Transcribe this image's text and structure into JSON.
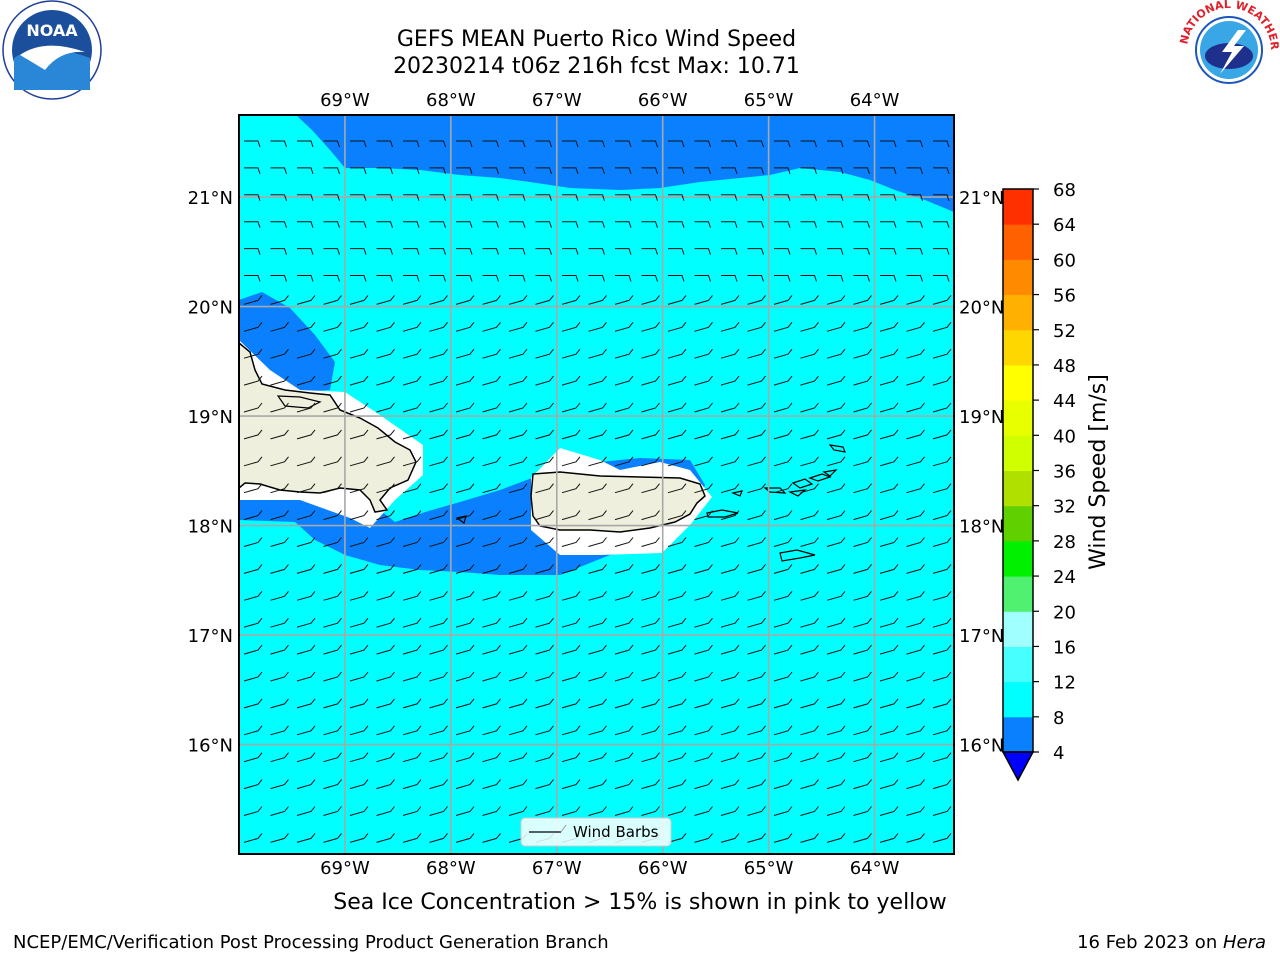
{
  "header": {
    "title_line_1": "GEFS MEAN Puerto Rico Wind Speed",
    "title_line_2": "20230214 t06z 216h fcst   Max: 10.71"
  },
  "map": {
    "lon_range": [
      -70.0,
      -63.25
    ],
    "lat_range": [
      15.0,
      21.75
    ],
    "lon_ticks": [
      {
        "value": -69,
        "label": "69°W"
      },
      {
        "value": -68,
        "label": "68°W"
      },
      {
        "value": -67,
        "label": "67°W"
      },
      {
        "value": -66,
        "label": "66°W"
      },
      {
        "value": -65,
        "label": "65°W"
      },
      {
        "value": -64,
        "label": "64°W"
      }
    ],
    "lat_ticks": [
      {
        "value": 21,
        "label": "21°N"
      },
      {
        "value": 20,
        "label": "20°N"
      },
      {
        "value": 19,
        "label": "19°N"
      },
      {
        "value": 18,
        "label": "18°N"
      },
      {
        "value": 17,
        "label": "17°N"
      },
      {
        "value": 16,
        "label": "16°N"
      }
    ],
    "grid": true,
    "legend_label": "Wind Barbs",
    "legend_placement": "bottom-center",
    "colors": {
      "ocean_fill": "#00ffff",
      "low_wind_fill": "#0a80ff",
      "land": "#efefdd",
      "land_halo": "#ffffff"
    }
  },
  "colorbar": {
    "label": "Wind Speed [m/s]",
    "ticks": [
      "4",
      "8",
      "12",
      "16",
      "20",
      "24",
      "28",
      "32",
      "36",
      "40",
      "44",
      "48",
      "52",
      "56",
      "60",
      "64",
      "68"
    ],
    "under_color": "#0000ff",
    "colors": [
      "#0a80ff",
      "#00ffff",
      "#48ffff",
      "#a0ffff",
      "#50f070",
      "#00f000",
      "#60d000",
      "#b0e000",
      "#d0ff00",
      "#e8ff00",
      "#ffff00",
      "#ffd700",
      "#ffb000",
      "#ff8a00",
      "#ff6000",
      "#ff3000"
    ]
  },
  "footer": {
    "note": "Sea Ice Concentration > 15% is shown in pink to yellow",
    "left": "NCEP/EMC/Verification Post Processing Product Generation Branch",
    "right_date": "16 Feb 2023 on ",
    "right_machine": "Hera"
  },
  "logos": {
    "noaa_text": "NOAA",
    "nws_text": "NATIONAL WEATHER SERVICE"
  }
}
